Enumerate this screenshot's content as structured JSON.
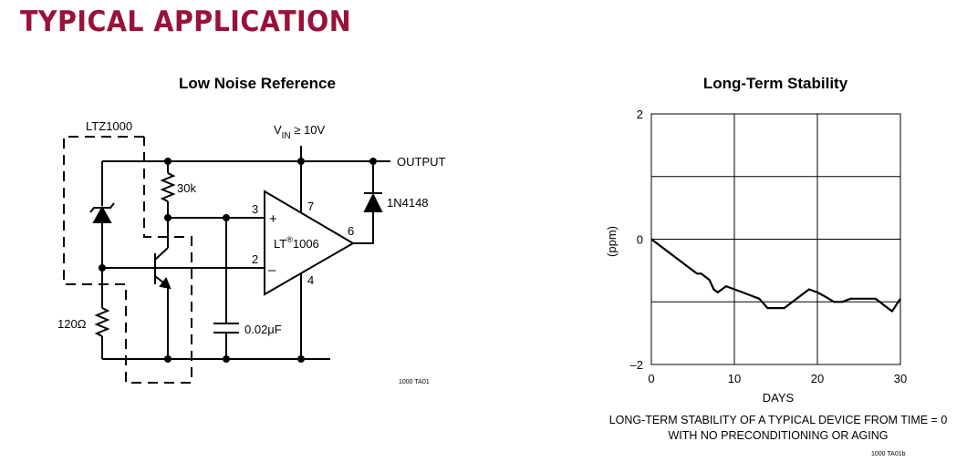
{
  "section_title": "TYPICAL APPLICATION",
  "colors": {
    "section_title": "#98123a",
    "wire": "#000000",
    "grid": "#000000"
  },
  "schematic": {
    "title": "Low Noise Reference",
    "vin_v": "V",
    "vin_sub": "IN",
    "vin_rest": " ≥ 10V",
    "output_label": "OUTPUT",
    "ltz_label": "LTZ1000",
    "r1_label": "30k",
    "r2_label": "120Ω",
    "cap_label": "0.02μF",
    "diode_label": "1N4148",
    "opamp_label_a": "LT",
    "opamp_label_reg": "®",
    "opamp_label_b": "1006",
    "plus_sign": "+",
    "minus_sign": "–",
    "pin3": "3",
    "pin2": "2",
    "pin7": "7",
    "pin6": "6",
    "pin4": "4",
    "code": "1000 TA01"
  },
  "chart_data": {
    "type": "line",
    "title": "Long-Term Stability",
    "xlabel": "DAYS",
    "ylabel": "(ppm)",
    "xlim": [
      0,
      30
    ],
    "ylim": [
      -2,
      2
    ],
    "x_ticks": [
      "0",
      "10",
      "20",
      "30"
    ],
    "y_ticks": [
      "2",
      "0",
      "–2"
    ],
    "grid": true,
    "caption_line1": "LONG-TERM STABILITY OF A TYPICAL DEVICE FROM TIME = 0",
    "caption_line2": "WITH NO PRECONDITIONING OR AGING",
    "code": "1000 TA01b",
    "series": [
      {
        "x": [
          0,
          1,
          2,
          3,
          4,
          5,
          5.5,
          6,
          7,
          7.5,
          8,
          9,
          10,
          11,
          12,
          13,
          14,
          15,
          16,
          17,
          18,
          19,
          20,
          21,
          22,
          23,
          24,
          25,
          26,
          27,
          28,
          29,
          30
        ],
        "y": [
          0,
          -0.1,
          -0.2,
          -0.3,
          -0.4,
          -0.5,
          -0.55,
          -0.55,
          -0.65,
          -0.8,
          -0.85,
          -0.75,
          -0.8,
          -0.85,
          -0.9,
          -0.95,
          -1.1,
          -1.1,
          -1.1,
          -1.0,
          -0.9,
          -0.8,
          -0.85,
          -0.92,
          -1.0,
          -1.0,
          -0.95,
          -0.95,
          -0.95,
          -0.95,
          -1.05,
          -1.15,
          -0.95
        ]
      }
    ]
  }
}
